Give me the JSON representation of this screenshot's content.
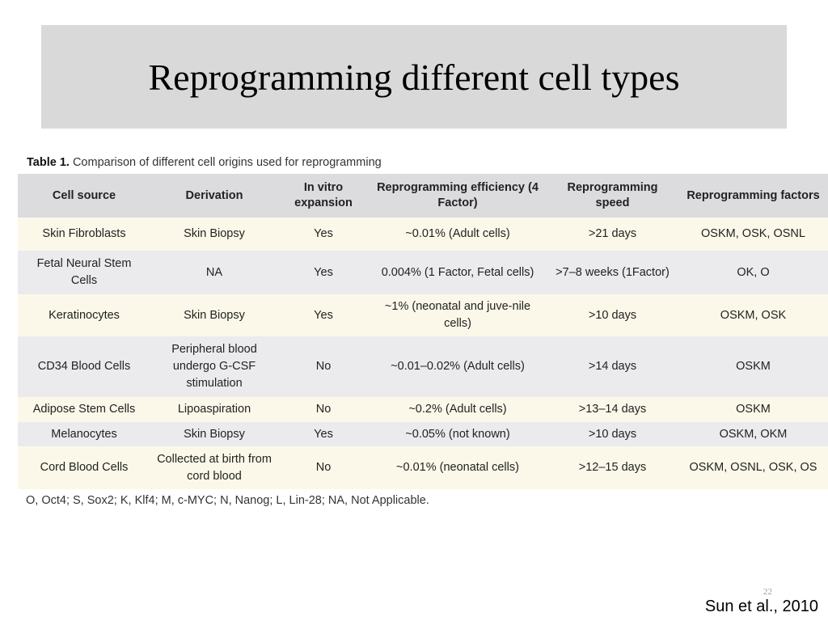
{
  "slide": {
    "title": "Reprogramming different cell types",
    "number": "22",
    "citation": "Sun et al., 2010"
  },
  "table": {
    "caption_label": "Table 1.",
    "caption_text": " Comparison of different cell origins used for reprogramming",
    "headers": [
      "Cell source",
      "Derivation",
      "In vitro expansion",
      "Reprogramming efficiency (4 Factor)",
      "Reprogramming speed",
      "Reprogramming factors"
    ],
    "rows": [
      [
        "Skin Fibroblasts",
        "Skin Biopsy",
        "Yes",
        "~0.01% (Adult cells)",
        ">21 days",
        "OSKM, OSK, OSNL"
      ],
      [
        "Fetal Neural Stem Cells",
        "NA",
        "Yes",
        "0.004% (1 Factor, Fetal cells)",
        ">7–8 weeks (1Factor)",
        "OK, O"
      ],
      [
        "Keratinocytes",
        "Skin Biopsy",
        "Yes",
        "~1% (neonatal and juve-nile cells)",
        ">10 days",
        "OSKM, OSK"
      ],
      [
        "CD34 Blood Cells",
        "Peripheral blood undergo G-CSF stimulation",
        "No",
        "~0.01–0.02% (Adult cells)",
        ">14 days",
        "OSKM"
      ],
      [
        "Adipose Stem Cells",
        "Lipoaspiration",
        "No",
        "~0.2% (Adult cells)",
        ">13–14 days",
        "OSKM"
      ],
      [
        "Melanocytes",
        "Skin Biopsy",
        "Yes",
        "~0.05% (not known)",
        ">10 days",
        "OSKM, OKM"
      ],
      [
        "Cord Blood Cells",
        "Collected at birth from cord blood",
        "No",
        "~0.01% (neonatal cells)",
        ">12–15 days",
        "OSKM, OSNL, OSK, OS"
      ]
    ],
    "footnote": "O, Oct4; S, Sox2; K, Klf4; M, c-MYC; N, Nanog; L, Lin-28; NA, Not Applicable.",
    "colors": {
      "header_bg": "#dcdcde",
      "row_odd_bg": "#fbf8e9",
      "row_even_bg": "#ebebee"
    }
  }
}
